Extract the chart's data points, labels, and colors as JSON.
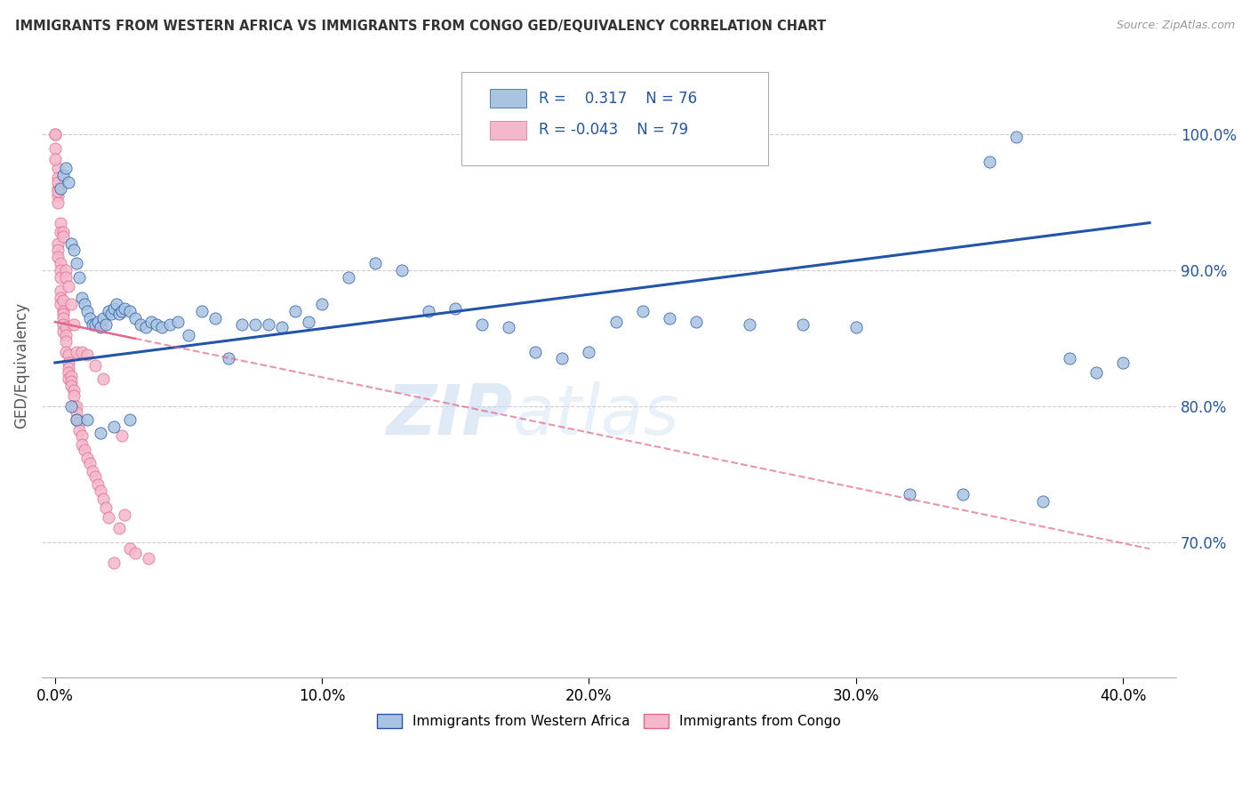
{
  "title": "IMMIGRANTS FROM WESTERN AFRICA VS IMMIGRANTS FROM CONGO GED/EQUIVALENCY CORRELATION CHART",
  "source": "Source: ZipAtlas.com",
  "xlabel_ticks": [
    "0.0%",
    "10.0%",
    "20.0%",
    "30.0%",
    "40.0%"
  ],
  "xlabel_tick_vals": [
    0.0,
    0.1,
    0.2,
    0.3,
    0.4
  ],
  "ylabel_tick_vals": [
    0.7,
    0.8,
    0.9,
    1.0
  ],
  "ylabel": "GED/Equivalency",
  "xlim": [
    -0.005,
    0.42
  ],
  "ylim": [
    0.6,
    1.06
  ],
  "r_blue": 0.317,
  "n_blue": 76,
  "r_pink": -0.043,
  "n_pink": 79,
  "legend_label_blue": "Immigrants from Western Africa",
  "legend_label_pink": "Immigrants from Congo",
  "blue_color": "#a8c4e0",
  "blue_line_color": "#2255aa",
  "pink_color": "#f4b8cc",
  "pink_line_color": "#e06888",
  "blue_dots_x": [
    0.002,
    0.003,
    0.004,
    0.005,
    0.006,
    0.007,
    0.008,
    0.009,
    0.01,
    0.011,
    0.012,
    0.013,
    0.014,
    0.015,
    0.016,
    0.017,
    0.018,
    0.019,
    0.02,
    0.021,
    0.022,
    0.023,
    0.024,
    0.025,
    0.026,
    0.028,
    0.03,
    0.032,
    0.034,
    0.036,
    0.038,
    0.04,
    0.043,
    0.046,
    0.05,
    0.055,
    0.06,
    0.065,
    0.07,
    0.075,
    0.08,
    0.085,
    0.09,
    0.095,
    0.1,
    0.11,
    0.12,
    0.13,
    0.14,
    0.15,
    0.16,
    0.17,
    0.18,
    0.19,
    0.2,
    0.21,
    0.22,
    0.23,
    0.24,
    0.26,
    0.28,
    0.3,
    0.32,
    0.34,
    0.35,
    0.36,
    0.37,
    0.38,
    0.39,
    0.4,
    0.006,
    0.008,
    0.012,
    0.017,
    0.022,
    0.028
  ],
  "blue_dots_y": [
    0.96,
    0.97,
    0.975,
    0.965,
    0.92,
    0.915,
    0.905,
    0.895,
    0.88,
    0.875,
    0.87,
    0.865,
    0.86,
    0.86,
    0.862,
    0.858,
    0.865,
    0.86,
    0.87,
    0.868,
    0.872,
    0.875,
    0.868,
    0.87,
    0.872,
    0.87,
    0.865,
    0.86,
    0.858,
    0.862,
    0.86,
    0.858,
    0.86,
    0.862,
    0.852,
    0.87,
    0.865,
    0.835,
    0.86,
    0.86,
    0.86,
    0.858,
    0.87,
    0.862,
    0.875,
    0.895,
    0.905,
    0.9,
    0.87,
    0.872,
    0.86,
    0.858,
    0.84,
    0.835,
    0.84,
    0.862,
    0.87,
    0.865,
    0.862,
    0.86,
    0.86,
    0.858,
    0.735,
    0.735,
    0.98,
    0.998,
    0.73,
    0.835,
    0.825,
    0.832,
    0.8,
    0.79,
    0.79,
    0.78,
    0.785,
    0.79
  ],
  "pink_dots_x": [
    0.0,
    0.0,
    0.0,
    0.001,
    0.001,
    0.001,
    0.001,
    0.001,
    0.001,
    0.001,
    0.001,
    0.002,
    0.002,
    0.002,
    0.002,
    0.002,
    0.002,
    0.003,
    0.003,
    0.003,
    0.003,
    0.003,
    0.003,
    0.004,
    0.004,
    0.004,
    0.004,
    0.005,
    0.005,
    0.005,
    0.005,
    0.005,
    0.006,
    0.006,
    0.006,
    0.007,
    0.007,
    0.007,
    0.008,
    0.008,
    0.008,
    0.009,
    0.009,
    0.01,
    0.01,
    0.011,
    0.012,
    0.013,
    0.014,
    0.015,
    0.016,
    0.017,
    0.018,
    0.019,
    0.02,
    0.022,
    0.024,
    0.026,
    0.028,
    0.03,
    0.035,
    0.0,
    0.001,
    0.001,
    0.002,
    0.002,
    0.003,
    0.003,
    0.004,
    0.004,
    0.005,
    0.006,
    0.007,
    0.008,
    0.01,
    0.012,
    0.015,
    0.018,
    0.025
  ],
  "pink_dots_y": [
    1.0,
    1.0,
    0.99,
    0.975,
    0.968,
    0.96,
    0.955,
    0.95,
    0.92,
    0.915,
    0.91,
    0.905,
    0.9,
    0.895,
    0.885,
    0.88,
    0.875,
    0.878,
    0.87,
    0.868,
    0.865,
    0.86,
    0.855,
    0.858,
    0.852,
    0.848,
    0.84,
    0.838,
    0.832,
    0.828,
    0.825,
    0.82,
    0.822,
    0.818,
    0.815,
    0.812,
    0.808,
    0.8,
    0.8,
    0.795,
    0.79,
    0.788,
    0.782,
    0.778,
    0.772,
    0.768,
    0.762,
    0.758,
    0.752,
    0.748,
    0.742,
    0.738,
    0.732,
    0.725,
    0.718,
    0.685,
    0.71,
    0.72,
    0.695,
    0.692,
    0.688,
    0.982,
    0.965,
    0.958,
    0.935,
    0.928,
    0.928,
    0.925,
    0.9,
    0.895,
    0.888,
    0.875,
    0.86,
    0.84,
    0.84,
    0.838,
    0.83,
    0.82,
    0.778
  ],
  "watermark_zip": "ZIP",
  "watermark_atlas": "atlas",
  "blue_trend_x0": 0.0,
  "blue_trend_y0": 0.832,
  "blue_trend_x1": 0.41,
  "blue_trend_y1": 0.935,
  "pink_trend_x0": 0.0,
  "pink_trend_y0": 0.862,
  "pink_trend_x1": 0.41,
  "pink_trend_y1": 0.695
}
